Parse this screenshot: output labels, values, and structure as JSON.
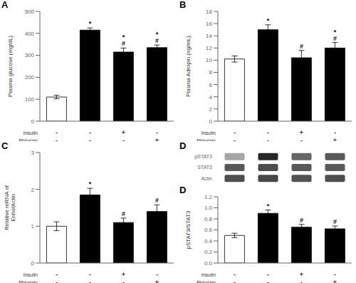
{
  "chart_data": [
    {
      "type": "bar",
      "title": "A",
      "y_label": "Plasma glucose (mg/dL)",
      "x_rows": [
        {
          "name": "Insulin",
          "labels": [
            "-",
            "-",
            "+",
            "-"
          ]
        },
        {
          "name": "Phlorizin",
          "labels": [
            "-",
            "-",
            "-",
            "+"
          ]
        }
      ],
      "values": [
        110,
        415,
        315,
        335
      ],
      "errors": [
        8,
        10,
        18,
        12
      ],
      "colors": [
        "white",
        "black",
        "black",
        "black"
      ],
      "annotations": [
        null,
        "*",
        "*\n#",
        "*\n#"
      ],
      "ylim": [
        0,
        500
      ],
      "yticks": [
        0,
        100,
        200,
        300,
        400,
        500
      ],
      "grid": false
    },
    {
      "type": "bar",
      "title": "B",
      "y_label": "Plasma Adropin (ng/mL)",
      "x_rows": [
        {
          "name": "Insulin",
          "labels": [
            "-",
            "-",
            "+",
            "-"
          ]
        },
        {
          "name": "Phlorizin",
          "labels": [
            "-",
            "-",
            "-",
            "+"
          ]
        }
      ],
      "values": [
        10.2,
        15.0,
        10.4,
        12.0
      ],
      "errors": [
        0.5,
        0.8,
        1.2,
        0.9
      ],
      "colors": [
        "white",
        "black",
        "black",
        "black"
      ],
      "annotations": [
        null,
        "*",
        "#",
        "*\n#"
      ],
      "ylim": [
        0,
        18
      ],
      "yticks": [
        0,
        2,
        4,
        6,
        8,
        10,
        12,
        14,
        16,
        18
      ],
      "grid": false
    },
    {
      "type": "bar",
      "title": "C",
      "y_label": "Relative mRNA of\nEnho/Actin",
      "x_rows": [
        {
          "name": "Insulin",
          "labels": [
            "-",
            "-",
            "+",
            "-"
          ]
        },
        {
          "name": "Phlorizin",
          "labels": [
            "-",
            "-",
            "-",
            "+"
          ]
        }
      ],
      "values": [
        1.0,
        1.85,
        1.1,
        1.4
      ],
      "errors": [
        0.12,
        0.18,
        0.12,
        0.18
      ],
      "colors": [
        "white",
        "black",
        "black",
        "black"
      ],
      "annotations": [
        null,
        "*",
        "#",
        "#"
      ],
      "ylim": [
        0,
        3
      ],
      "yticks": [
        0,
        1,
        2,
        3
      ],
      "grid": false
    },
    {
      "type": "heatmap",
      "title": "D",
      "categories": [
        "pSTAT3",
        "STAT3",
        "Actin"
      ],
      "cells": [
        [
          0.35,
          0.85,
          0.6,
          0.65
        ],
        [
          0.65,
          0.7,
          0.65,
          0.65
        ],
        [
          0.7,
          0.72,
          0.68,
          0.7
        ]
      ],
      "tick_labels": "y"
    },
    {
      "type": "bar",
      "title": "D",
      "y_label": "pSTAT3/STAT3",
      "x_rows": [
        {
          "name": "Insulin",
          "labels": [
            "-",
            "-",
            "+",
            "-"
          ]
        },
        {
          "name": "Phlorizin",
          "labels": [
            "-",
            "-",
            "-",
            "+"
          ]
        }
      ],
      "values": [
        0.5,
        0.9,
        0.65,
        0.62
      ],
      "errors": [
        0.04,
        0.06,
        0.05,
        0.05
      ],
      "colors": [
        "white",
        "black",
        "black",
        "black"
      ],
      "annotations": [
        null,
        "*",
        "#",
        "#"
      ],
      "ylim": [
        0,
        1.2
      ],
      "yticks": [
        {
          "value": 0,
          "label": "0.0"
        },
        0.2,
        0.4,
        0.6,
        0.8,
        {
          "value": 1,
          "label": "1.0"
        },
        1.2
      ],
      "grid": false
    }
  ]
}
